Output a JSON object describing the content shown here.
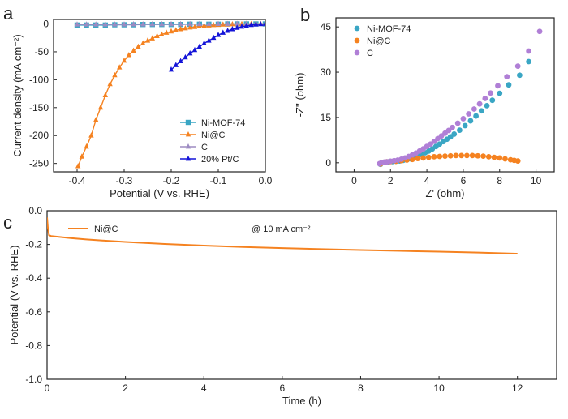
{
  "chart_data": [
    {
      "panel": "a",
      "type": "line",
      "xlabel": "Potential (V vs. RHE)",
      "ylabel": "Current density (mA cm⁻²)",
      "xlim": [
        -0.45,
        0.0
      ],
      "ylim": [
        -265,
        8
      ],
      "xticks": [
        -0.4,
        -0.3,
        -0.2,
        -0.1,
        0.0
      ],
      "xtick_labels": [
        "-0.4",
        "-0.3",
        "-0.2",
        "-0.1",
        "0.0"
      ],
      "yticks": [
        0,
        -50,
        -100,
        -150,
        -200,
        -250
      ],
      "ytick_labels": [
        "0",
        "-50",
        "-100",
        "-150",
        "-200",
        "-250"
      ],
      "legend_position": "bottom-right",
      "series": [
        {
          "name": "Ni-MOF-74",
          "color": "#3aa6c4",
          "marker": "square",
          "x": [
            -0.4,
            -0.38,
            -0.36,
            -0.34,
            -0.32,
            -0.3,
            -0.28,
            -0.26,
            -0.24,
            -0.22,
            -0.2,
            -0.18,
            -0.16,
            -0.14,
            -0.12,
            -0.1,
            -0.08,
            -0.06,
            -0.04,
            -0.02,
            0.0
          ],
          "y": [
            -2,
            -2,
            -2,
            -2,
            -1.5,
            -1.5,
            -1.5,
            -1,
            -1,
            -1,
            -1,
            -1,
            -0.5,
            -0.5,
            -0.5,
            -0.5,
            0,
            0,
            0,
            0,
            0
          ]
        },
        {
          "name": "Ni@C",
          "color": "#f58220",
          "marker": "triangle",
          "x": [
            -0.398,
            -0.39,
            -0.38,
            -0.37,
            -0.36,
            -0.35,
            -0.34,
            -0.33,
            -0.32,
            -0.31,
            -0.3,
            -0.29,
            -0.28,
            -0.27,
            -0.26,
            -0.25,
            -0.24,
            -0.23,
            -0.22,
            -0.21,
            -0.2,
            -0.19,
            -0.18,
            -0.17,
            -0.16,
            -0.15,
            -0.14,
            -0.13,
            -0.12,
            -0.11,
            -0.1,
            -0.09,
            -0.08,
            -0.07,
            -0.06,
            -0.05,
            -0.04,
            -0.03,
            -0.02,
            -0.01,
            0.0
          ],
          "y": [
            -255,
            -238,
            -220,
            -200,
            -172,
            -150,
            -128,
            -108,
            -92,
            -78,
            -66,
            -56,
            -48,
            -41,
            -35,
            -30,
            -26,
            -22,
            -19,
            -16,
            -13.5,
            -11.5,
            -9.5,
            -8,
            -6.5,
            -5.5,
            -4.5,
            -3.5,
            -2.8,
            -2.2,
            -1.7,
            -1.3,
            -1,
            -0.7,
            -0.5,
            -0.3,
            -0.2,
            -0.1,
            0,
            0,
            0
          ]
        },
        {
          "name": "C",
          "color": "#9d8bc2",
          "marker": "triangle",
          "x": [
            -0.4,
            -0.38,
            -0.36,
            -0.34,
            -0.32,
            -0.3,
            -0.28,
            -0.26,
            -0.24,
            -0.22,
            -0.2,
            -0.18,
            -0.16,
            -0.14,
            -0.12,
            -0.1,
            -0.08,
            -0.06,
            -0.04,
            -0.02,
            0.0
          ],
          "y": [
            -1,
            -1,
            -1,
            -1,
            -1,
            -1,
            -0.8,
            -0.8,
            -0.6,
            -0.6,
            -0.5,
            -0.5,
            -0.4,
            -0.3,
            -0.2,
            -0.2,
            -0.1,
            0,
            0,
            0,
            0
          ]
        },
        {
          "name": "20% Pt/C",
          "color": "#1414d8",
          "marker": "triangle",
          "x": [
            -0.2,
            -0.19,
            -0.18,
            -0.17,
            -0.16,
            -0.15,
            -0.14,
            -0.13,
            -0.12,
            -0.11,
            -0.1,
            -0.09,
            -0.08,
            -0.07,
            -0.06,
            -0.05,
            -0.04,
            -0.03,
            -0.02,
            -0.01,
            0.0
          ],
          "y": [
            -82,
            -74,
            -67,
            -60,
            -53,
            -47,
            -41,
            -35,
            -30,
            -25,
            -20,
            -16,
            -12.5,
            -9.5,
            -7,
            -5,
            -3.5,
            -2,
            -1,
            -0.5,
            0
          ]
        }
      ]
    },
    {
      "panel": "b",
      "type": "scatter",
      "xlabel": "Z' (ohm)",
      "ylabel": "-Z'' (ohm)",
      "xlim": [
        -1,
        11
      ],
      "ylim": [
        -3,
        48
      ],
      "xticks": [
        0,
        2,
        4,
        6,
        8,
        10
      ],
      "xtick_labels": [
        "0",
        "2",
        "4",
        "6",
        "8",
        "10"
      ],
      "yticks": [
        0,
        15,
        30,
        45
      ],
      "ytick_labels": [
        "0",
        "15",
        "30",
        "45"
      ],
      "legend_position": "top-left",
      "series": [
        {
          "name": "Ni-MOF-74",
          "color": "#3aa6c4",
          "x": [
            1.45,
            1.55,
            1.7,
            1.9,
            2.1,
            2.3,
            2.5,
            2.7,
            2.9,
            3.1,
            3.3,
            3.5,
            3.7,
            3.9,
            4.1,
            4.3,
            4.5,
            4.7,
            4.9,
            5.1,
            5.3,
            5.5,
            5.8,
            6.1,
            6.4,
            6.7,
            7.0,
            7.3,
            7.6,
            8.0,
            8.5,
            9.1,
            9.6
          ],
          "y": [
            -0.5,
            0.0,
            0.2,
            0.3,
            0.4,
            0.5,
            0.6,
            0.8,
            1.0,
            1.3,
            1.7,
            2.2,
            2.7,
            3.3,
            3.9,
            4.6,
            5.4,
            6.2,
            7.0,
            7.8,
            8.6,
            9.5,
            10.8,
            12.3,
            13.9,
            15.5,
            17.2,
            18.9,
            20.7,
            23.0,
            25.8,
            29.0,
            33.5
          ]
        },
        {
          "name": "Ni@C",
          "color": "#f58220",
          "x": [
            1.45,
            1.6,
            1.8,
            2.0,
            2.3,
            2.6,
            2.9,
            3.2,
            3.5,
            3.8,
            4.1,
            4.4,
            4.7,
            5.0,
            5.3,
            5.6,
            5.9,
            6.2,
            6.5,
            6.8,
            7.1,
            7.4,
            7.7,
            8.0,
            8.3,
            8.6,
            8.8,
            9.0
          ],
          "y": [
            -0.4,
            0.1,
            0.3,
            0.4,
            0.5,
            0.7,
            0.9,
            1.1,
            1.4,
            1.6,
            1.8,
            2.0,
            2.1,
            2.2,
            2.3,
            2.4,
            2.4,
            2.4,
            2.4,
            2.3,
            2.2,
            2.0,
            1.8,
            1.6,
            1.3,
            1.0,
            0.8,
            0.6
          ]
        },
        {
          "name": "C",
          "color": "#b07fd6",
          "x": [
            1.4,
            1.5,
            1.65,
            1.8,
            2.0,
            2.2,
            2.4,
            2.6,
            2.8,
            3.0,
            3.2,
            3.4,
            3.6,
            3.8,
            4.0,
            4.2,
            4.4,
            4.6,
            4.8,
            5.0,
            5.2,
            5.4,
            5.7,
            6.0,
            6.3,
            6.6,
            6.9,
            7.2,
            7.5,
            7.9,
            8.4,
            9.0,
            9.6,
            10.2
          ],
          "y": [
            -0.3,
            0.0,
            0.2,
            0.3,
            0.5,
            0.7,
            0.9,
            1.2,
            1.6,
            2.1,
            2.6,
            3.2,
            3.9,
            4.6,
            5.4,
            6.2,
            7.1,
            8.0,
            8.9,
            9.8,
            10.7,
            11.7,
            13.1,
            14.6,
            16.2,
            17.8,
            19.5,
            21.3,
            23.1,
            25.5,
            28.5,
            32.0,
            37.0,
            43.5
          ]
        }
      ]
    },
    {
      "panel": "c",
      "type": "line",
      "xlabel": "Time (h)",
      "ylabel": "Potential (V vs. RHE)",
      "xlim": [
        0,
        13
      ],
      "ylim": [
        -1.0,
        0.0
      ],
      "xticks": [
        0,
        2,
        4,
        6,
        8,
        10,
        12
      ],
      "xtick_labels": [
        "0",
        "2",
        "4",
        "6",
        "8",
        "10",
        "12"
      ],
      "yticks": [
        0.0,
        -0.2,
        -0.4,
        -0.6,
        -0.8,
        -1.0
      ],
      "ytick_labels": [
        "0.0",
        "-0.2",
        "-0.4",
        "-0.6",
        "-0.8",
        "-1.0"
      ],
      "legend_position": "top-left",
      "annotation": "@ 10 mA cm⁻²",
      "series": [
        {
          "name": "Ni@C",
          "color": "#f58220",
          "x": [
            0,
            0.02,
            0.05,
            0.1,
            0.3,
            0.6,
            1,
            1.5,
            2,
            3,
            4,
            5,
            6,
            7,
            8,
            9,
            10,
            11,
            12
          ],
          "y": [
            -0.04,
            -0.1,
            -0.145,
            -0.15,
            -0.155,
            -0.162,
            -0.17,
            -0.178,
            -0.185,
            -0.197,
            -0.207,
            -0.215,
            -0.222,
            -0.228,
            -0.233,
            -0.238,
            -0.243,
            -0.248,
            -0.255
          ]
        }
      ]
    }
  ]
}
